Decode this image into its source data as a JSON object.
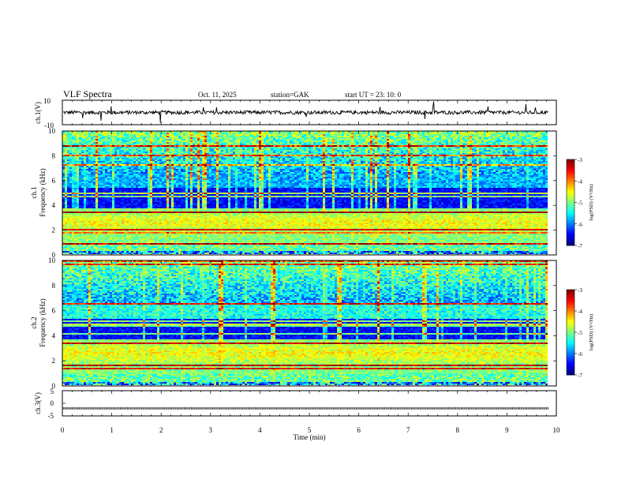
{
  "header": {
    "title": "VLF  Spectra",
    "date": "Oct. 11, 2025",
    "station": "station=GAK",
    "start": "start  UT  =    23: 10: 0"
  },
  "chart_data": [
    {
      "type": "line",
      "ylabel": "ch.1(V)",
      "ylim": [
        -10,
        10
      ],
      "yticks": [
        "10",
        "-10"
      ],
      "xlim": [
        0,
        10
      ],
      "series": [
        {
          "color": "#000000",
          "baseline": 0,
          "amplitude_typical": 1.5,
          "x_end": 9.84
        }
      ]
    },
    {
      "type": "heatmap",
      "ylabel_line1": "ch.1",
      "ylabel_line2": "Frequency (kHz)",
      "ylim": [
        0,
        10
      ],
      "yticks": [
        "0",
        "2",
        "4",
        "6",
        "8",
        "10"
      ],
      "xlim": [
        0,
        10
      ],
      "x_end": 9.84,
      "colorbar": {
        "label": "log(PSD) (V²/Hz)",
        "range": [
          -7,
          -3
        ],
        "ticks": [
          "-3",
          "-4",
          "-5",
          "-6",
          "-7"
        ]
      }
    },
    {
      "type": "heatmap",
      "ylabel_line1": "ch.2",
      "ylabel_line2": "Frequency (kHz)",
      "ylim": [
        0,
        10
      ],
      "yticks": [
        "0",
        "2",
        "4",
        "6",
        "8",
        "10"
      ],
      "xlim": [
        0,
        10
      ],
      "x_end": 9.84,
      "colorbar": {
        "label": "log(PSD) (V²/Hz)",
        "range": [
          -7,
          -3
        ],
        "ticks": [
          "-3",
          "-4",
          "-5",
          "-6",
          "-7"
        ]
      }
    },
    {
      "type": "line",
      "ylabel": "ch.3(V)",
      "ylim": [
        -5,
        5
      ],
      "yticks": [
        "5",
        "0",
        "-5"
      ],
      "xlim": [
        0,
        10
      ],
      "xlabel": "Time  (min)",
      "xticks": [
        "0",
        "1",
        "2",
        "3",
        "4",
        "5",
        "6",
        "7",
        "8",
        "9",
        "10"
      ],
      "series": [
        {
          "color": "#000000",
          "baseline": -2.0,
          "x_end": 9.84
        }
      ]
    }
  ],
  "colors": {
    "axis": "#000000",
    "background": "#ffffff"
  }
}
